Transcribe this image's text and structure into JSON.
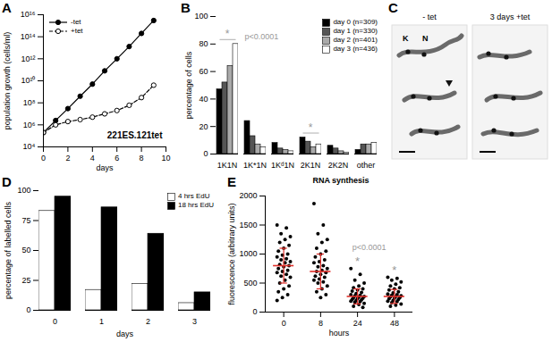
{
  "chart_data": [
    {
      "panel": "A",
      "type": "line",
      "log": "y",
      "x_label": "days",
      "y_label": "population growth (cells/ml)",
      "annotation": "221ES.121tet",
      "legend": "top-left",
      "xlim": [
        0,
        10
      ],
      "xticks": [
        0,
        2,
        4,
        6,
        8,
        10
      ],
      "ylim": [
        10000,
        1e+16
      ],
      "yticks": [
        {
          "value": 10000,
          "label": "10⁴"
        },
        {
          "value": 1000000,
          "label": "10⁶"
        },
        {
          "value": 100000000,
          "label": "10⁸"
        },
        {
          "value": 10000000000,
          "label": "10¹⁰"
        },
        {
          "value": 1000000000000,
          "label": "10¹²"
        },
        {
          "value": 100000000000000,
          "label": "10¹⁴"
        },
        {
          "value": 1e+16,
          "label": "10¹⁶"
        }
      ],
      "x": [
        0,
        1,
        2,
        3,
        4,
        5,
        6,
        7,
        8,
        9
      ],
      "series": [
        {
          "name": "-tet",
          "color": "#000000",
          "marker": "circle",
          "line_style": "solid",
          "values": [
            200000,
            2500000,
            30000000,
            400000000,
            5000000000,
            80000000000,
            1000000000000,
            13000000000000,
            200000000000000,
            3000000000000000
          ]
        },
        {
          "name": "+tet",
          "color": "#000000",
          "marker": "open_circle",
          "line_style": "dashed",
          "values": [
            200000,
            1000000,
            2000000,
            3000000,
            5000000,
            10000000,
            20000000,
            60000000,
            300000000,
            4000000000
          ]
        }
      ]
    },
    {
      "panel": "B",
      "type": "bar",
      "y_label": "percentage of cells",
      "legend": "top-right",
      "ylim": [
        0,
        100
      ],
      "yticks": [
        0,
        20,
        40,
        60,
        80,
        100
      ],
      "categories": [
        "1K1N",
        "1K*1N",
        "1Kᵈ1N",
        "2K1N",
        "2K2N",
        "other"
      ],
      "series": [
        {
          "name": "day 0 (n=309)",
          "color": "#000000",
          "values": [
            47,
            24,
            8,
            12,
            6,
            3
          ]
        },
        {
          "name": "day 1 (n=330)",
          "color": "#555555",
          "values": [
            52,
            13,
            4,
            9,
            4,
            7
          ]
        },
        {
          "name": "day 2 (n=401)",
          "color": "#aaaaaa",
          "values": [
            64,
            7,
            3,
            5,
            2,
            7
          ]
        },
        {
          "name": "day 3 (n=436)",
          "color": "#ffffff",
          "values": [
            80,
            5,
            2,
            7,
            1,
            8
          ]
        }
      ],
      "annotations": [
        {
          "text": "*",
          "category": "1K1N",
          "color": "#999999"
        },
        {
          "text": "p<0.0001",
          "color": "#999999"
        },
        {
          "text": "*",
          "category": "2K1N",
          "color": "#999999"
        }
      ]
    },
    {
      "panel": "C",
      "type": "image",
      "images": [
        {
          "title": "- tet",
          "labels": [
            "K",
            "N"
          ]
        },
        {
          "title": "3 days +tet"
        }
      ]
    },
    {
      "panel": "D",
      "type": "bar",
      "x_label": "days",
      "y_label": "percentage of labelled cells",
      "legend": "top-right",
      "categories": [
        0,
        1,
        2,
        3
      ],
      "ylim": [
        0,
        100
      ],
      "yticks": [
        0,
        25,
        50,
        75,
        100
      ],
      "series": [
        {
          "name": "4 hrs EdU",
          "color": "#ffffff",
          "values": [
            83,
            17,
            22,
            6
          ]
        },
        {
          "name": "18 hrs EdU",
          "color": "#000000",
          "values": [
            95,
            86,
            64,
            15
          ]
        }
      ]
    },
    {
      "panel": "E",
      "type": "scatter",
      "title": "RNA synthesis",
      "x_label": "hours",
      "y_label": "fluorescence (arbitrary units)",
      "categories": [
        0,
        8,
        24,
        48
      ],
      "ylim": [
        0,
        2000
      ],
      "yticks": [
        0,
        500,
        1000,
        1500,
        2000
      ],
      "color": "#000000",
      "values": [
        [
          1500,
          1450,
          1350,
          1300,
          1250,
          1200,
          1150,
          1100,
          1050,
          1000,
          980,
          950,
          920,
          900,
          870,
          850,
          820,
          800,
          780,
          750,
          720,
          700,
          680,
          650,
          620,
          600,
          550,
          500,
          450,
          400,
          350,
          300,
          250,
          200
        ],
        [
          1870,
          1500,
          1350,
          1250,
          1200,
          1100,
          1050,
          1000,
          950,
          900,
          870,
          850,
          800,
          780,
          750,
          720,
          700,
          680,
          650,
          620,
          600,
          570,
          550,
          520,
          500,
          450,
          400,
          350,
          300,
          250
        ],
        [
          750,
          650,
          550,
          500,
          450,
          420,
          400,
          380,
          360,
          340,
          320,
          300,
          290,
          280,
          270,
          260,
          250,
          240,
          230,
          220,
          210,
          200,
          190,
          180,
          170,
          150,
          130,
          100,
          80
        ],
        [
          600,
          580,
          550,
          520,
          480,
          450,
          420,
          400,
          380,
          350,
          330,
          310,
          300,
          290,
          280,
          270,
          260,
          250,
          240,
          230,
          220,
          200,
          190,
          180,
          160,
          140,
          120,
          100
        ]
      ],
      "mean": [
        800,
        700,
        270,
        270
      ],
      "sd": [
        300,
        300,
        130,
        120
      ],
      "annotations": [
        {
          "text": "p<0.0001",
          "color": "#999999"
        },
        {
          "text": "*",
          "category": 24,
          "color": "#999999"
        },
        {
          "text": "*",
          "category": 48,
          "color": "#999999"
        }
      ]
    }
  ]
}
